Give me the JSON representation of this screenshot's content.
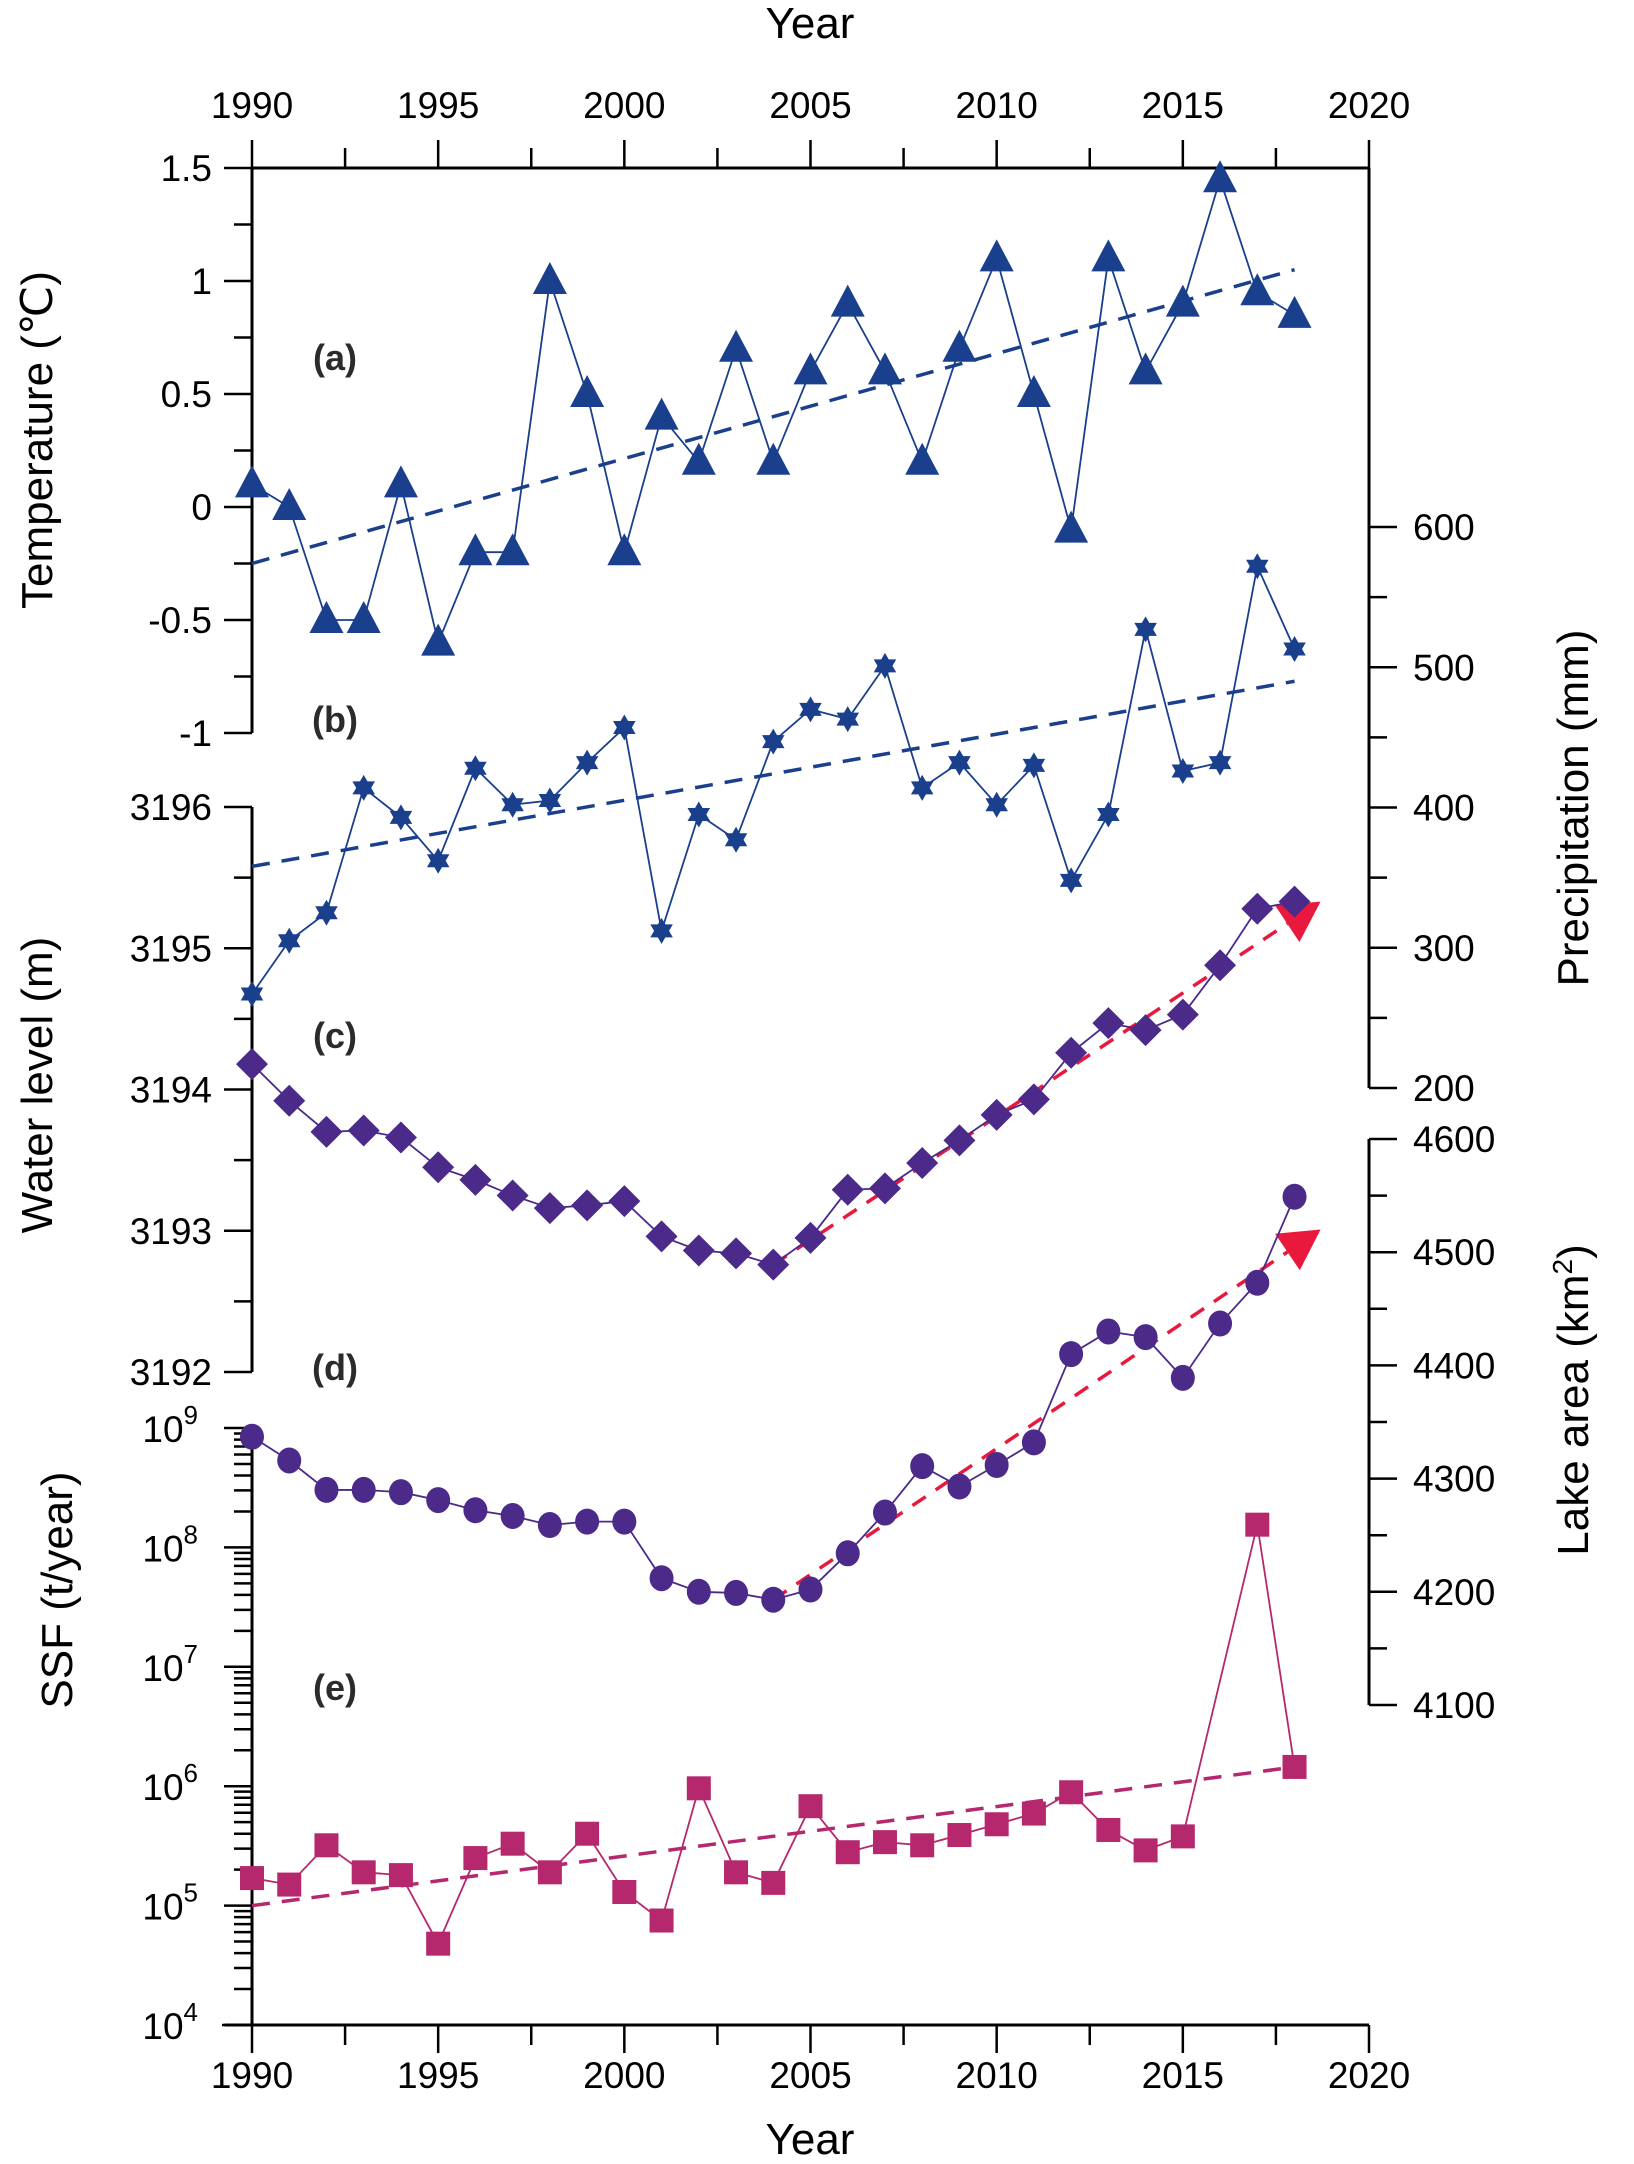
{
  "chart_data": {
    "type": "line",
    "title": "",
    "x": [
      1990,
      1991,
      1992,
      1993,
      1994,
      1995,
      1996,
      1997,
      1998,
      1999,
      2000,
      2001,
      2002,
      2003,
      2004,
      2005,
      2006,
      2007,
      2008,
      2009,
      2010,
      2011,
      2012,
      2013,
      2014,
      2015,
      2016,
      2017,
      2018
    ],
    "x_axis": {
      "label": "Year",
      "range": [
        1990,
        2020
      ],
      "ticks": [
        "1990",
        "1995",
        "2000",
        "2005",
        "2010",
        "2015",
        "2020"
      ],
      "minor_step": 2.5,
      "positions": [
        "top",
        "bottom"
      ]
    },
    "panels": [
      {
        "id": "a",
        "label": "(a)",
        "axis_side": "left",
        "ylabel": "Temperature (℃)",
        "ylim": [
          -1,
          1.5
        ],
        "yticks": [
          "1.5",
          "1",
          "0.5",
          "0",
          "-0.5",
          "-1"
        ],
        "ytick_values": [
          1.5,
          1,
          0.5,
          0,
          -0.5,
          -1
        ],
        "marker": "triangle",
        "color": "#1a3f8c",
        "series": {
          "name": "Temperature",
          "values": [
            0.1,
            0.0,
            -0.5,
            -0.5,
            0.1,
            -0.6,
            -0.2,
            -0.2,
            1.0,
            0.5,
            -0.2,
            0.4,
            0.2,
            0.7,
            0.2,
            0.6,
            0.9,
            0.6,
            0.2,
            0.7,
            1.1,
            0.5,
            -0.1,
            1.1,
            0.6,
            0.9,
            1.45,
            0.95,
            0.85
          ]
        },
        "trend": {
          "x": [
            1990,
            2018
          ],
          "y": [
            -0.25,
            1.05
          ],
          "style": "dashed",
          "color": "#1a3f8c"
        }
      },
      {
        "id": "b",
        "label": "(b)",
        "axis_side": "right",
        "ylabel": "Precipitation (mm)",
        "ylim": [
          200,
          600
        ],
        "yticks": [
          "600",
          "500",
          "400",
          "300",
          "200"
        ],
        "ytick_values": [
          600,
          500,
          400,
          300,
          200
        ],
        "marker": "star",
        "color": "#1a3f8c",
        "series": {
          "name": "Precipitation",
          "values": [
            267,
            305,
            325,
            414,
            393,
            362,
            428,
            402,
            405,
            432,
            457,
            312,
            395,
            377,
            447,
            470,
            463,
            501,
            414,
            432,
            402,
            430,
            348,
            395,
            527,
            426,
            432,
            572,
            513
          ]
        },
        "trend": {
          "x": [
            1990,
            2018
          ],
          "y": [
            358,
            490
          ],
          "style": "dashed",
          "color": "#1a3f8c"
        }
      },
      {
        "id": "c",
        "label": "(c)",
        "axis_side": "left",
        "ylabel": "Water level (m)",
        "ylim": [
          3192,
          3196
        ],
        "yticks": [
          "3196",
          "3195",
          "3194",
          "3193",
          "3192"
        ],
        "ytick_values": [
          3196,
          3195,
          3194,
          3193,
          3192
        ],
        "marker": "diamond",
        "color": "#4b2a8a",
        "series": {
          "name": "Water level",
          "values": [
            3194.18,
            3193.92,
            3193.7,
            3193.71,
            3193.66,
            3193.45,
            3193.36,
            3193.25,
            3193.16,
            3193.18,
            3193.21,
            3192.96,
            3192.86,
            3192.84,
            3192.76,
            3192.95,
            3193.29,
            3193.3,
            3193.48,
            3193.64,
            3193.82,
            3193.93,
            3194.26,
            3194.47,
            3194.42,
            3194.53,
            3194.88,
            3195.28,
            3195.33
          ]
        },
        "trend": {
          "x": [
            2004,
            2018.7
          ],
          "y": [
            3192.76,
            3195.33
          ],
          "style": "dashed-arrow",
          "color": "#e8193c"
        }
      },
      {
        "id": "d",
        "label": "(d)",
        "axis_side": "right",
        "ylabel": "Lake area (km²)",
        "ylabel_main": "Lake area (km",
        "ylabel_sup": "2",
        "ylabel_end": ")",
        "ylim": [
          4100,
          4600
        ],
        "yticks": [
          "4600",
          "4500",
          "4400",
          "4300",
          "4200",
          "4100"
        ],
        "ytick_values": [
          4600,
          4500,
          4400,
          4300,
          4200,
          4100
        ],
        "marker": "circle",
        "color": "#4b2a8a",
        "series": {
          "name": "Lake area",
          "values": [
            4337,
            4316,
            4290,
            4290,
            4288,
            4281,
            4272,
            4267,
            4259,
            4262,
            4262,
            4212,
            4200,
            4199,
            4193,
            4202,
            4234,
            4270,
            4311,
            4293,
            4312,
            4332,
            4410,
            4430,
            4425,
            4389,
            4437,
            4473,
            4549
          ]
        },
        "trend": {
          "x": [
            2004,
            2018.7
          ],
          "y": [
            4193,
            4520
          ],
          "style": "dashed-arrow",
          "color": "#e8193c"
        }
      },
      {
        "id": "e",
        "label": "(e)",
        "axis_side": "left",
        "ylabel": "SSF (t/year)",
        "yscale": "log",
        "ylim": [
          10000,
          1000000000
        ],
        "yticks": [
          {
            "base": "10",
            "exp": "9"
          },
          {
            "base": "10",
            "exp": "8"
          },
          {
            "base": "10",
            "exp": "7"
          },
          {
            "base": "10",
            "exp": "6"
          },
          {
            "base": "10",
            "exp": "5"
          },
          {
            "base": "10",
            "exp": "4"
          }
        ],
        "ytick_values": [
          1000000000.0,
          100000000.0,
          10000000.0,
          1000000.0,
          100000.0,
          10000.0
        ],
        "marker": "square",
        "color": "#b5286e",
        "series": {
          "name": "SSF",
          "values": [
            170000,
            150000,
            320000,
            190000,
            180000,
            48000,
            250000,
            330000,
            190000,
            400000,
            130000,
            75000,
            960000,
            190000,
            155000,
            680000,
            280000,
            340000,
            320000,
            390000,
            480000,
            590000,
            890000,
            430000,
            290000,
            380000,
            null,
            155000000,
            1450000
          ]
        },
        "trend": {
          "x": [
            1990,
            2018
          ],
          "y": [
            100000,
            1450000
          ],
          "style": "dashed",
          "color": "#b5286e"
        }
      }
    ]
  }
}
